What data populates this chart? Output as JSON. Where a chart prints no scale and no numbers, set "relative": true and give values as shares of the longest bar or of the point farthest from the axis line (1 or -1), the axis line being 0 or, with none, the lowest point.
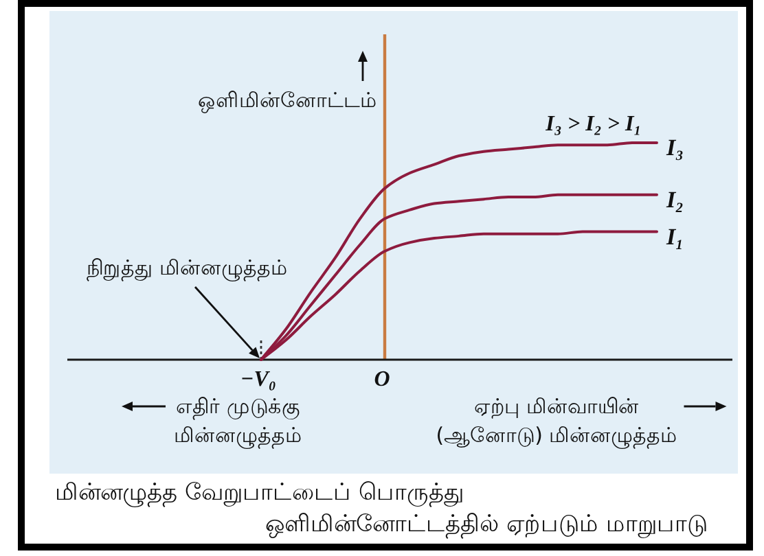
{
  "chart_data": {
    "type": "line",
    "relative": true,
    "xlabel": "ஏற்பு மின்வாயின்\n(ஆனோடு) மின்னழுத்தம்",
    "ylabel": "ஒளிமின்னோட்டம்",
    "categories": [
      "−V₀",
      null,
      null,
      null,
      null,
      "O",
      null,
      null,
      null,
      null,
      null,
      null,
      null,
      null,
      null,
      null,
      null
    ],
    "series": [
      {
        "name": "I₃",
        "color": "#8e1b3e",
        "values": [
          0,
          0.14,
          0.31,
          0.47,
          0.65,
          0.79,
          0.86,
          0.9,
          0.94,
          0.96,
          0.97,
          0.98,
          0.99,
          0.99,
          0.99,
          1,
          1
        ]
      },
      {
        "name": "I₂",
        "color": "#8e1b3e",
        "values": [
          0,
          0.11,
          0.25,
          0.39,
          0.53,
          0.65,
          0.69,
          0.72,
          0.73,
          0.74,
          0.75,
          0.75,
          0.76,
          0.76,
          0.76,
          0.76,
          0.76
        ]
      },
      {
        "name": "I₁",
        "color": "#8e1b3e",
        "values": [
          0,
          0.09,
          0.2,
          0.3,
          0.41,
          0.5,
          0.54,
          0.56,
          0.57,
          0.58,
          0.58,
          0.58,
          0.58,
          0.59,
          0.59,
          0.59,
          0.59
        ]
      }
    ],
    "ref_lines": [
      {
        "axis": "x",
        "value": "O",
        "color": "#c97b42"
      },
      {
        "axis": "x",
        "value": "−V₀",
        "line_style": "dotted"
      }
    ],
    "annotations": [
      "I₃ > I₂ > I₁",
      "நிறுத்து மின்னழுத்தம்",
      "எதிர் முடுக்கு\nமின்னழுத்தம்",
      "மின்னழுத்த வேறுபாட்டைப் பொருத்து\nஒளிமின்னோட்டத்தில் ஏற்படும் மாறுபாடு"
    ]
  }
}
